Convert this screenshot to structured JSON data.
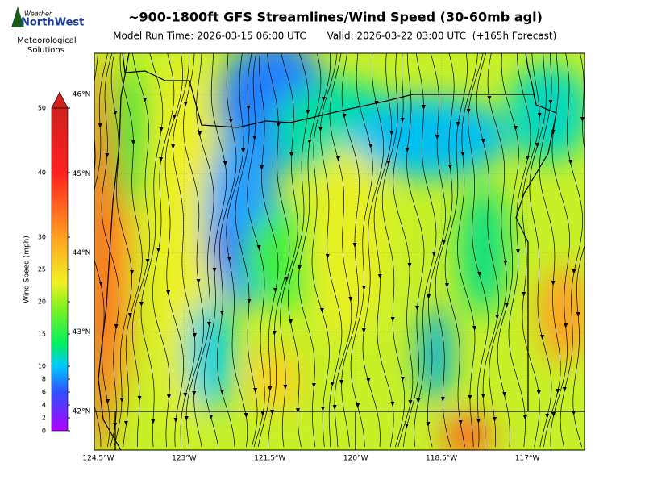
{
  "header": {
    "title": "~900-1800ft GFS Streamlines/Wind Speed (30-60mb agl)",
    "model_run": "Model Run Time: 2026-03-15 06:00 UTC",
    "valid": "Valid: 2026-03-22 03:00 UTC  (+165h Forecast)"
  },
  "logo": {
    "line1": "Weather",
    "line2": "NorthWest",
    "tagline": [
      "Meteorological",
      "Solutions"
    ]
  },
  "colorbar": {
    "label": "Wind Speed (mph)",
    "lim": [
      0,
      50
    ],
    "ticks": [
      0,
      2,
      4,
      6,
      8,
      10,
      15,
      20,
      25,
      30,
      40,
      50
    ]
  },
  "map": {
    "lonlim": [
      -124.57,
      -116.0
    ],
    "latlim": [
      41.51,
      46.52
    ],
    "lon_ticks": [
      {
        "value": -124.5,
        "label": "124.5°W"
      },
      {
        "value": -123,
        "label": "123°W"
      },
      {
        "value": -121.5,
        "label": "121.5°W"
      },
      {
        "value": -120,
        "label": "120°W"
      },
      {
        "value": -118.5,
        "label": "118.5°W"
      },
      {
        "value": -117,
        "label": "117°W"
      }
    ],
    "lat_ticks": [
      {
        "value": 46,
        "label": "46°N"
      },
      {
        "value": 45,
        "label": "45°N"
      },
      {
        "value": 44,
        "label": "44°N"
      },
      {
        "value": 43,
        "label": "43°N"
      },
      {
        "value": 42,
        "label": "42°N"
      }
    ]
  }
}
